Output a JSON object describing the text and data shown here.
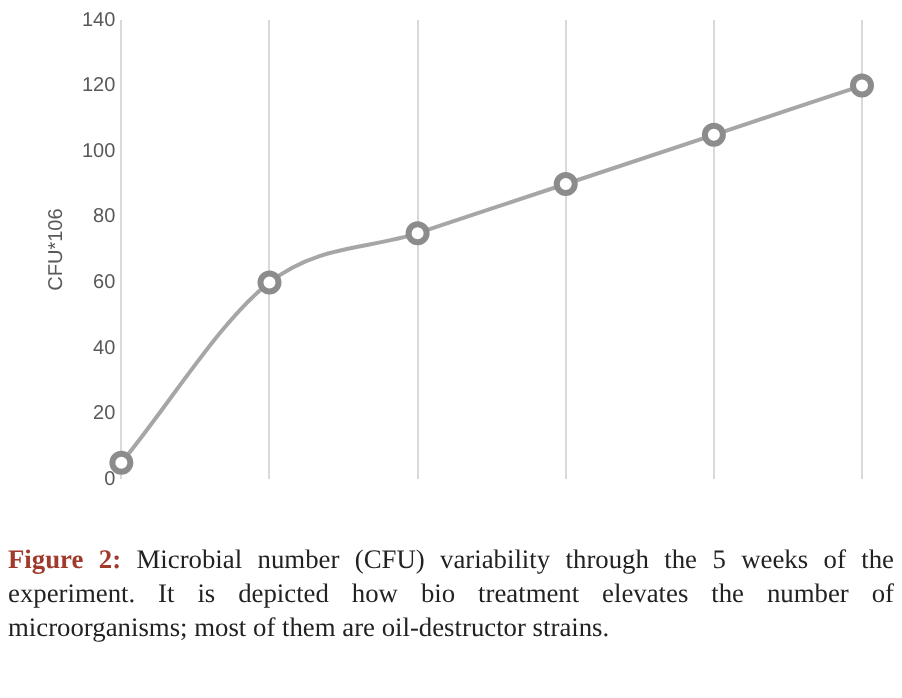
{
  "chart_data": {
    "type": "line",
    "ylabel": "CFU*106",
    "categories": [
      null,
      null,
      null,
      null,
      null,
      null
    ],
    "series": [
      {
        "color": "#a6a6a6",
        "values": [
          5,
          60,
          75,
          90,
          105,
          120
        ]
      }
    ],
    "ylim": [
      0,
      140
    ],
    "yticks": [
      0,
      20,
      40,
      60,
      80,
      100,
      120,
      140
    ],
    "grid": "x",
    "marker": "circle",
    "line_style": "solid",
    "legend": false,
    "annotations": [
      "Figure 2: Microbial number (CFU) variability through the 5 weeks of the experiment. It is depicted how bio treatment elevates the number of microorganisms; most of them are oil-destructor strains."
    ]
  }
}
